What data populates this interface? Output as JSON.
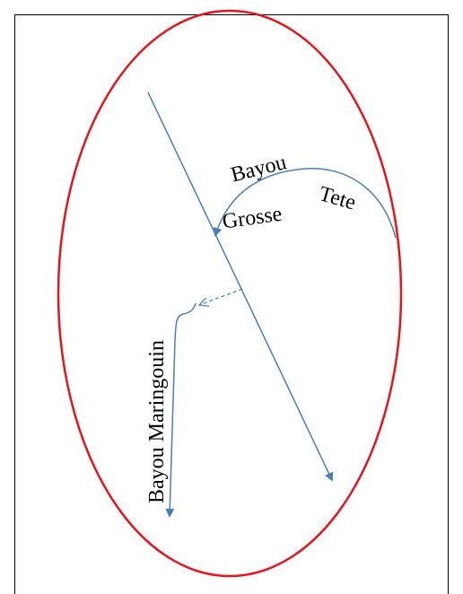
{
  "labels": {
    "bayou": "Bayou",
    "grosse": "Grosse",
    "tete": "Tete",
    "maringouin": "Bayou Maringouin"
  }
}
